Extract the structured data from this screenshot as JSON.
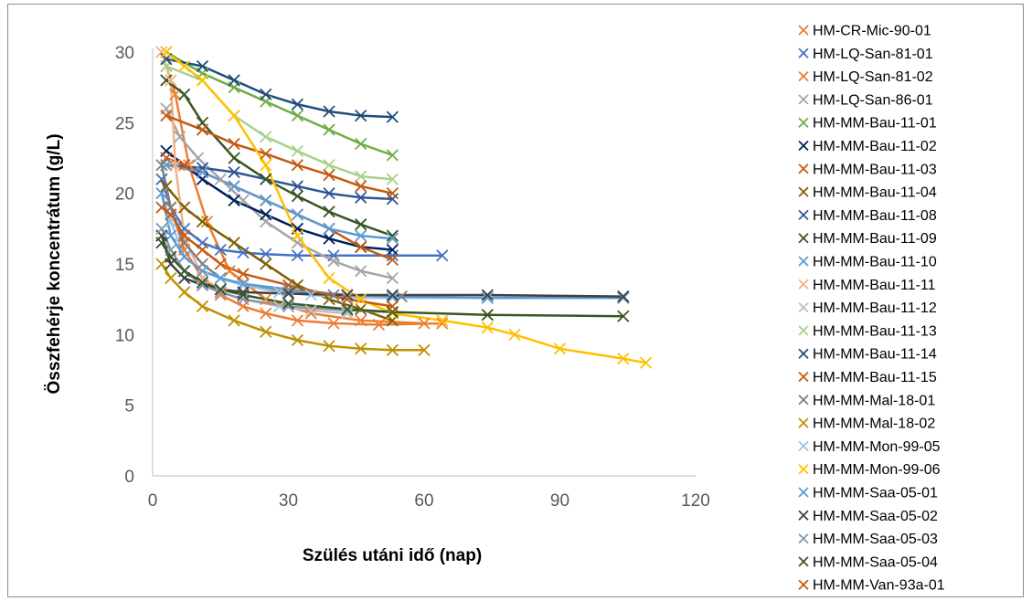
{
  "chart_data": {
    "type": "line",
    "title": "",
    "xlabel": "Szülés utáni idő (nap)",
    "ylabel": "Összfehérje koncentrátum (g/L)",
    "xlim": [
      0,
      120
    ],
    "ylim": [
      0,
      30
    ],
    "xticks": [
      0,
      30,
      60,
      90,
      120
    ],
    "yticks": [
      0,
      5,
      10,
      15,
      20,
      25,
      30
    ],
    "grid": false,
    "legend_position": "right",
    "series": [
      {
        "name": "HM-CR-Mic-90-01",
        "color": "#ED7D31",
        "points": [
          [
            2,
            21
          ],
          [
            4,
            19
          ],
          [
            7,
            16
          ],
          [
            11,
            14
          ],
          [
            15,
            12.8
          ],
          [
            20,
            12
          ],
          [
            25,
            11.5
          ],
          [
            32,
            11
          ],
          [
            40,
            10.8
          ],
          [
            50,
            10.7
          ],
          [
            64,
            10.8
          ]
        ]
      },
      {
        "name": "HM-LQ-San-81-01",
        "color": "#4472C4",
        "points": [
          [
            2,
            21
          ],
          [
            4,
            19
          ],
          [
            7,
            17.5
          ],
          [
            11,
            16.5
          ],
          [
            15,
            16
          ],
          [
            20,
            15.8
          ],
          [
            25,
            15.7
          ],
          [
            32,
            15.6
          ],
          [
            40,
            15.6
          ],
          [
            53,
            15.6
          ],
          [
            64,
            15.6
          ]
        ]
      },
      {
        "name": "HM-LQ-San-81-02",
        "color": "#ED7D31",
        "points": [
          [
            3,
            29
          ],
          [
            5,
            27
          ],
          [
            8,
            22
          ],
          [
            12,
            18
          ],
          [
            17,
            14.5
          ],
          [
            25,
            12.5
          ],
          [
            35,
            11.5
          ],
          [
            46,
            11
          ],
          [
            60,
            10.8
          ]
        ]
      },
      {
        "name": "HM-LQ-San-86-01",
        "color": "#A5A5A5",
        "points": [
          [
            3,
            26
          ],
          [
            6,
            24
          ],
          [
            10,
            22.5
          ],
          [
            15,
            21
          ],
          [
            20,
            19.5
          ],
          [
            25,
            18
          ],
          [
            32,
            16.5
          ],
          [
            40,
            15.2
          ],
          [
            46,
            14.5
          ],
          [
            53,
            14
          ]
        ]
      },
      {
        "name": "HM-MM-Bau-11-01",
        "color": "#70AD47",
        "points": [
          [
            3,
            30
          ],
          [
            11,
            28.5
          ],
          [
            18,
            27.5
          ],
          [
            25,
            26.5
          ],
          [
            32,
            25.5
          ],
          [
            39,
            24.5
          ],
          [
            46,
            23.5
          ],
          [
            53,
            22.7
          ]
        ]
      },
      {
        "name": "HM-MM-Bau-11-02",
        "color": "#002060",
        "points": [
          [
            3,
            23
          ],
          [
            7,
            22
          ],
          [
            11,
            21
          ],
          [
            18,
            19.5
          ],
          [
            25,
            18.5
          ],
          [
            32,
            17.5
          ],
          [
            39,
            16.8
          ],
          [
            46,
            16.2
          ],
          [
            53,
            16
          ]
        ]
      },
      {
        "name": "HM-MM-Bau-11-03",
        "color": "#C55A11",
        "points": [
          [
            3,
            22.5
          ],
          [
            7,
            22
          ],
          [
            11,
            21.5
          ],
          [
            18,
            20.5
          ],
          [
            25,
            19.5
          ],
          [
            32,
            18.5
          ],
          [
            39,
            17.5
          ],
          [
            46,
            16.2
          ],
          [
            53,
            15.3
          ]
        ]
      },
      {
        "name": "HM-MM-Bau-11-04",
        "color": "#7F6000",
        "points": [
          [
            3,
            20.5
          ],
          [
            7,
            19
          ],
          [
            11,
            18
          ],
          [
            18,
            16.5
          ],
          [
            25,
            15
          ],
          [
            32,
            13.5
          ],
          [
            39,
            12.5
          ],
          [
            46,
            11.8
          ],
          [
            53,
            11
          ]
        ]
      },
      {
        "name": "HM-MM-Bau-11-08",
        "color": "#2F5597",
        "points": [
          [
            3,
            22
          ],
          [
            11,
            21.8
          ],
          [
            18,
            21.5
          ],
          [
            25,
            21
          ],
          [
            32,
            20.5
          ],
          [
            39,
            20
          ],
          [
            46,
            19.7
          ],
          [
            53,
            19.6
          ]
        ]
      },
      {
        "name": "HM-MM-Bau-11-09",
        "color": "#375623",
        "points": [
          [
            3,
            28
          ],
          [
            7,
            27
          ],
          [
            11,
            25
          ],
          [
            18,
            22.5
          ],
          [
            25,
            21
          ],
          [
            32,
            19.8
          ],
          [
            39,
            18.7
          ],
          [
            46,
            17.8
          ],
          [
            53,
            17
          ]
        ]
      },
      {
        "name": "HM-MM-Bau-11-10",
        "color": "#5B9BD5",
        "points": [
          [
            3,
            22
          ],
          [
            11,
            21.5
          ],
          [
            18,
            20.5
          ],
          [
            25,
            19.5
          ],
          [
            32,
            18.5
          ],
          [
            39,
            17.5
          ],
          [
            46,
            17
          ],
          [
            53,
            16.8
          ]
        ]
      },
      {
        "name": "HM-MM-Bau-11-11",
        "color": "#F4B183",
        "points": [
          [
            2,
            30
          ],
          [
            4,
            28
          ],
          [
            5,
            22
          ],
          [
            7,
            17
          ],
          [
            11,
            14
          ],
          [
            15,
            13.2
          ],
          [
            20,
            12.8
          ]
        ]
      },
      {
        "name": "HM-MM-Bau-11-12",
        "color": "#BFBFBF",
        "points": [
          [
            2,
            17
          ],
          [
            4,
            15.5
          ],
          [
            7,
            14.5
          ],
          [
            11,
            13.5
          ],
          [
            15,
            13
          ],
          [
            20,
            12.5
          ],
          [
            28,
            12
          ],
          [
            35,
            11.7
          ],
          [
            43,
            11.5
          ]
        ]
      },
      {
        "name": "HM-MM-Bau-11-13",
        "color": "#A9D18E",
        "points": [
          [
            3,
            29
          ],
          [
            11,
            28
          ],
          [
            18,
            25.5
          ],
          [
            25,
            24
          ],
          [
            32,
            23
          ],
          [
            39,
            22
          ],
          [
            46,
            21.2
          ],
          [
            53,
            21
          ]
        ]
      },
      {
        "name": "HM-MM-Bau-11-14",
        "color": "#1F4E79",
        "points": [
          [
            3,
            29.5
          ],
          [
            11,
            29
          ],
          [
            18,
            28
          ],
          [
            25,
            27
          ],
          [
            32,
            26.3
          ],
          [
            39,
            25.8
          ],
          [
            46,
            25.5
          ],
          [
            53,
            25.4
          ]
        ]
      },
      {
        "name": "HM-MM-Bau-11-15",
        "color": "#C55A11",
        "points": [
          [
            3,
            25.5
          ],
          [
            11,
            24.5
          ],
          [
            18,
            23.5
          ],
          [
            25,
            22.8
          ],
          [
            32,
            22
          ],
          [
            39,
            21.3
          ],
          [
            46,
            20.5
          ],
          [
            53,
            20
          ]
        ]
      },
      {
        "name": "HM-MM-Mal-18-01",
        "color": "#7F7F7F",
        "points": [
          [
            2,
            22
          ],
          [
            4,
            19
          ],
          [
            7,
            16.5
          ],
          [
            11,
            15
          ],
          [
            15,
            14
          ],
          [
            20,
            13.5
          ],
          [
            30,
            13
          ],
          [
            40,
            12.8
          ],
          [
            55,
            12.7
          ],
          [
            74,
            12.6
          ],
          [
            104,
            12.6
          ]
        ]
      },
      {
        "name": "HM-MM-Mal-18-02",
        "color": "#BF9000",
        "points": [
          [
            2,
            15
          ],
          [
            4,
            14
          ],
          [
            7,
            13
          ],
          [
            11,
            12
          ],
          [
            18,
            11
          ],
          [
            25,
            10.2
          ],
          [
            32,
            9.6
          ],
          [
            39,
            9.2
          ],
          [
            46,
            9
          ],
          [
            53,
            8.9
          ],
          [
            60,
            8.9
          ]
        ]
      },
      {
        "name": "HM-MM-Mon-99-05",
        "color": "#9DC3E6",
        "points": [
          [
            2,
            20
          ],
          [
            4,
            18
          ],
          [
            7,
            15.5
          ],
          [
            11,
            14.5
          ],
          [
            15,
            14
          ],
          [
            20,
            13.5
          ],
          [
            28,
            13
          ],
          [
            35,
            12.8
          ],
          [
            43,
            12.6
          ],
          [
            53,
            12.6
          ],
          [
            74,
            12.6
          ],
          [
            104,
            12.6
          ]
        ]
      },
      {
        "name": "HM-MM-Mon-99-06",
        "color": "#FFC000",
        "points": [
          [
            3,
            30
          ],
          [
            7,
            29
          ],
          [
            11,
            28
          ],
          [
            18,
            25.5
          ],
          [
            25,
            22
          ],
          [
            32,
            17
          ],
          [
            39,
            14
          ],
          [
            46,
            12.5
          ],
          [
            53,
            11.5
          ],
          [
            64,
            11
          ],
          [
            74,
            10.5
          ],
          [
            80,
            10
          ],
          [
            90,
            9
          ],
          [
            104,
            8.3
          ],
          [
            109,
            8
          ]
        ]
      },
      {
        "name": "HM-MM-Saa-05-01",
        "color": "#5B9BD5",
        "points": [
          [
            2,
            20
          ],
          [
            4,
            17
          ],
          [
            7,
            15.5
          ],
          [
            11,
            14.5
          ],
          [
            15,
            14
          ],
          [
            20,
            13.6
          ],
          [
            30,
            13.2
          ],
          [
            43,
            12.8
          ],
          [
            53,
            12.7
          ],
          [
            74,
            12.6
          ],
          [
            104,
            12.6
          ]
        ]
      },
      {
        "name": "HM-MM-Saa-05-02",
        "color": "#404040",
        "points": [
          [
            2,
            17
          ],
          [
            4,
            15
          ],
          [
            7,
            14
          ],
          [
            11,
            13.5
          ],
          [
            15,
            13.2
          ],
          [
            20,
            13
          ],
          [
            30,
            12.9
          ],
          [
            43,
            12.8
          ],
          [
            53,
            12.8
          ],
          [
            74,
            12.8
          ],
          [
            104,
            12.7
          ]
        ]
      },
      {
        "name": "HM-MM-Saa-05-03",
        "color": "#8497B0",
        "points": [
          [
            2,
            17.5
          ],
          [
            4,
            16
          ],
          [
            7,
            14.5
          ],
          [
            11,
            13.5
          ],
          [
            15,
            13
          ],
          [
            20,
            12.5
          ],
          [
            30,
            12
          ],
          [
            43,
            11.7
          ],
          [
            53,
            11.6
          ]
        ]
      },
      {
        "name": "HM-MM-Saa-05-04",
        "color": "#385723",
        "points": [
          [
            2,
            16.5
          ],
          [
            4,
            15.5
          ],
          [
            7,
            14.5
          ],
          [
            11,
            13.7
          ],
          [
            15,
            13.2
          ],
          [
            20,
            12.8
          ],
          [
            30,
            12.2
          ],
          [
            43,
            11.8
          ],
          [
            53,
            11.6
          ],
          [
            74,
            11.4
          ],
          [
            104,
            11.3
          ]
        ]
      },
      {
        "name": "HM-MM-Van-93a-01",
        "color": "#C55A11",
        "points": [
          [
            2,
            19
          ],
          [
            4,
            18.5
          ],
          [
            7,
            17
          ],
          [
            11,
            16
          ],
          [
            15,
            15
          ],
          [
            20,
            14.3
          ],
          [
            30,
            13.5
          ],
          [
            43,
            12.5
          ],
          [
            53,
            12
          ]
        ]
      }
    ]
  }
}
